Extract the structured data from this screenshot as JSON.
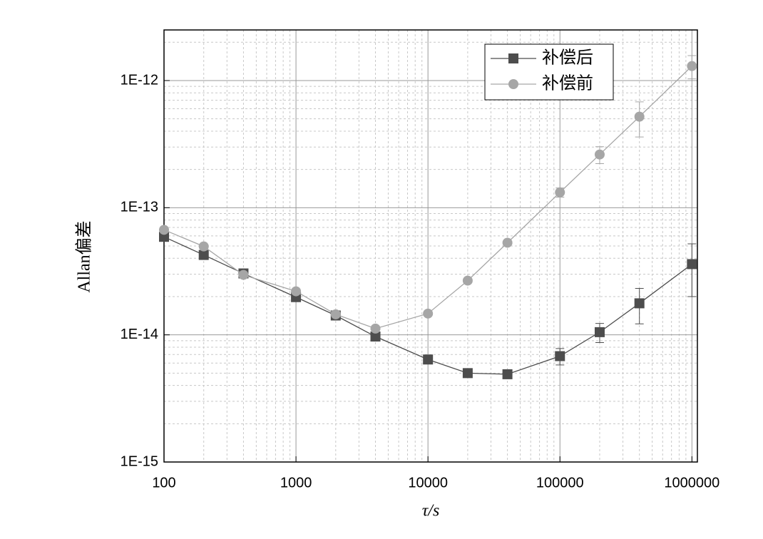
{
  "chart_data": {
    "type": "line",
    "x_label": "τ/s",
    "y_label": "Allan偏差",
    "x": [
      100,
      200,
      400,
      1000,
      2000,
      4000,
      10000,
      20000,
      40000,
      100000,
      200000,
      400000,
      1000000
    ],
    "series": [
      {
        "name": "补偿后",
        "color": "#4d4d4d",
        "marker": "square",
        "values": [
          5.9e-14,
          4.25e-14,
          3.04e-14,
          1.98e-14,
          1.42e-14,
          9.7e-15,
          6.4e-15,
          5e-15,
          4.9e-15,
          6.8e-15,
          1.05e-14,
          1.77e-14,
          3.6e-14
        ],
        "errors": [
          0,
          0,
          0,
          0,
          0,
          0,
          0,
          0,
          0,
          1e-15,
          1.8e-15,
          5.5e-15,
          1.6e-14
        ]
      },
      {
        "name": "补偿前",
        "color": "#a6a6a6",
        "marker": "circle",
        "values": [
          6.7e-14,
          4.96e-14,
          2.96e-14,
          2.2e-14,
          1.45e-14,
          1.12e-14,
          1.47e-14,
          2.67e-14,
          5.3e-14,
          1.32e-13,
          2.62e-13,
          5.2e-13,
          1.3e-12
        ],
        "errors": [
          0,
          0,
          0,
          0,
          0,
          0,
          0,
          0,
          0,
          1.1e-14,
          4e-14,
          1.6e-13,
          2.7e-13
        ]
      }
    ],
    "xscale": "log",
    "yscale": "log",
    "xlim": [
      100,
      1100000
    ],
    "ylim": [
      1e-15,
      2.5e-12
    ],
    "xticks": [
      100,
      1000,
      10000,
      100000,
      1000000
    ],
    "yticks": [
      {
        "value": 1e-15,
        "label": "1E-15"
      },
      {
        "value": 1e-14,
        "label": "1E-14"
      },
      {
        "value": 1e-13,
        "label": "1E-13"
      },
      {
        "value": 1e-12,
        "label": "1E-12"
      }
    ],
    "grid": true,
    "minor_grid": true,
    "legend": "upper right"
  }
}
